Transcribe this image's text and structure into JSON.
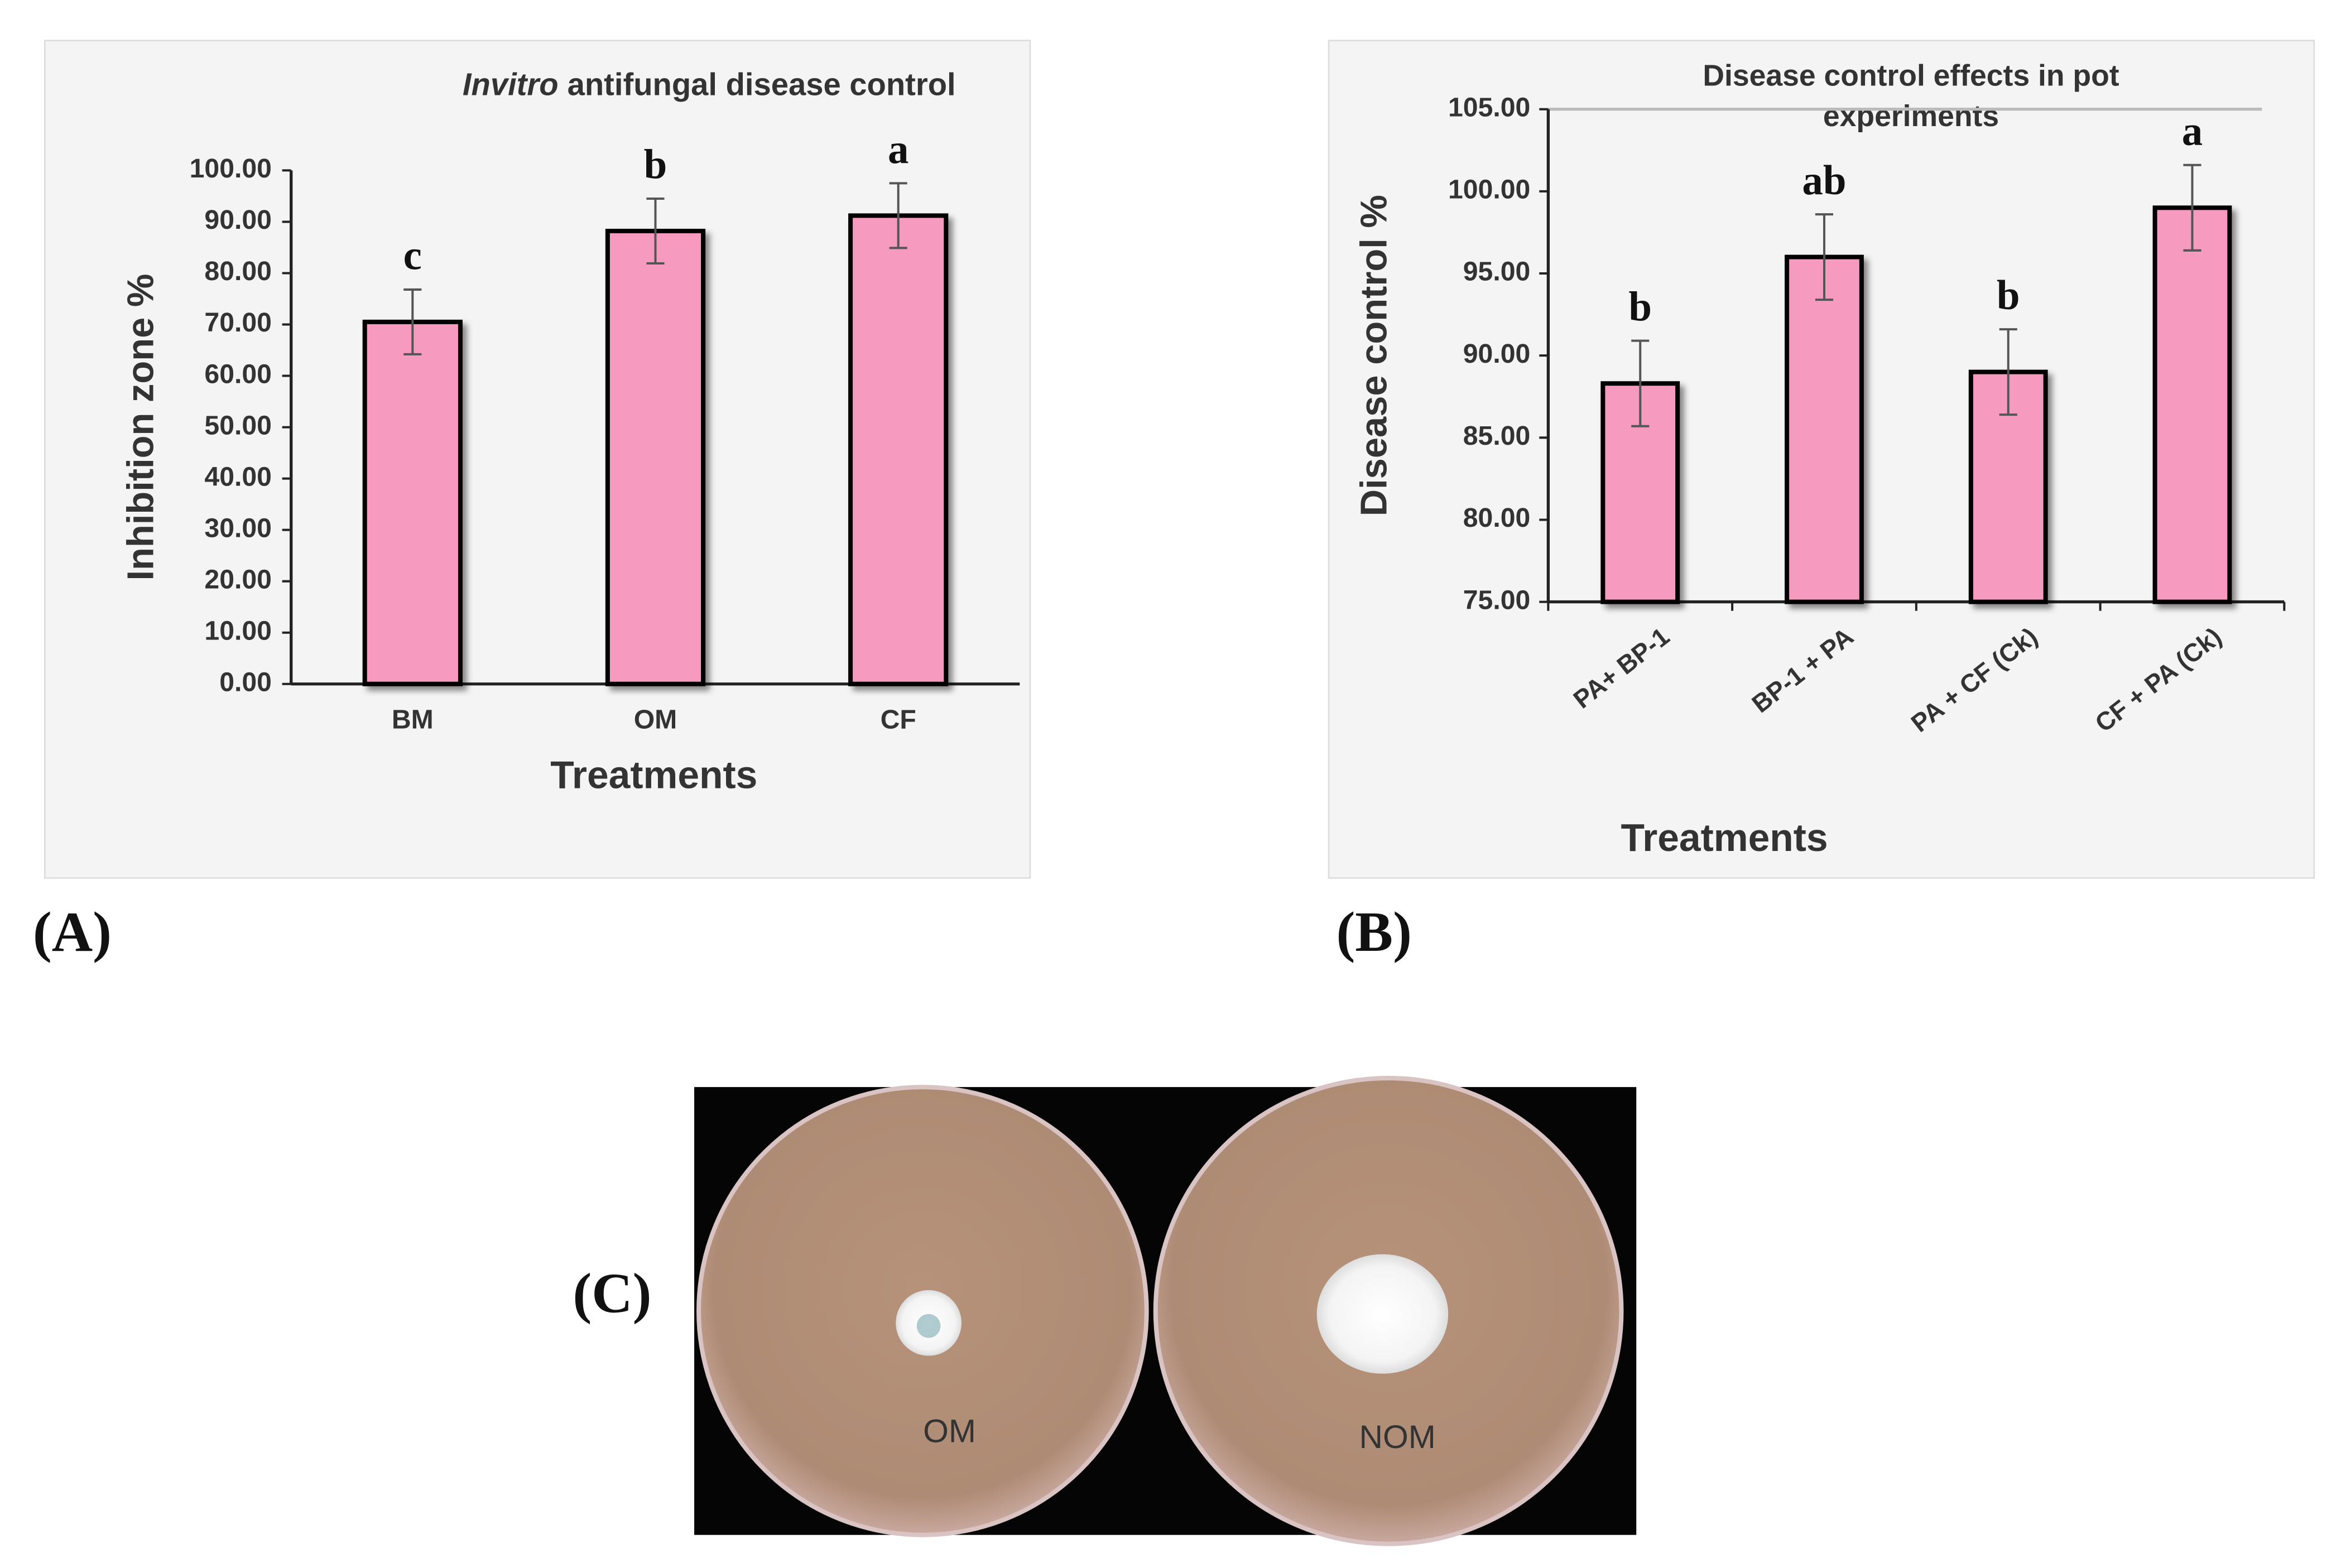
{
  "chart_data": [
    {
      "type": "bar",
      "panel_label": "(A)",
      "title": [
        "Invitro",
        "antifungal disease control"
      ],
      "x_label": "Treatments",
      "y_label": "Inhibition zone %",
      "categories": [
        "BM",
        "OM",
        "CF"
      ],
      "values": [
        70.5,
        88.2,
        91.2
      ],
      "errors": [
        6.3,
        6.3,
        6.3
      ],
      "letters": [
        "c",
        "b",
        "a"
      ],
      "color": "#f79ac0",
      "ylim": [
        0,
        100
      ],
      "yticks": [
        {
          "value": 0,
          "label": "0.00"
        },
        {
          "value": 10,
          "label": "10.00"
        },
        {
          "value": 20,
          "label": "20.00"
        },
        {
          "value": 30,
          "label": "30.00"
        },
        {
          "value": 40,
          "label": "40.00"
        },
        {
          "value": 50,
          "label": "50.00"
        },
        {
          "value": 60,
          "label": "60.00"
        },
        {
          "value": 70,
          "label": "70.00"
        },
        {
          "value": 80,
          "label": "80.00"
        },
        {
          "value": 90,
          "label": "90.00"
        },
        {
          "value": 100,
          "label": "100.00"
        }
      ]
    },
    {
      "type": "bar",
      "panel_label": "(B)",
      "title": [
        "Disease control effects in pot",
        "experiments"
      ],
      "x_label": "Treatments",
      "y_label": "Disease control %",
      "categories": [
        "PA+ BP-1",
        "BP-1 + PA",
        "PA + CF  (Ck)",
        "CF + PA (Ck)"
      ],
      "values": [
        88.3,
        96.0,
        89.0,
        99.0
      ],
      "errors": [
        2.6,
        2.6,
        2.6,
        2.6
      ],
      "letters": [
        "b",
        "ab",
        "b",
        "a"
      ],
      "color": "#f79ac0",
      "ylim": [
        75,
        105
      ],
      "yticks": [
        {
          "value": 75,
          "label": "75.00"
        },
        {
          "value": 80,
          "label": "80.00"
        },
        {
          "value": 85,
          "label": "85.00"
        },
        {
          "value": 90,
          "label": "90.00"
        },
        {
          "value": 95,
          "label": "95.00"
        },
        {
          "value": 100,
          "label": "100.00"
        },
        {
          "value": 105,
          "label": "105.00"
        }
      ]
    }
  ],
  "photo": {
    "panel_label": "(C)",
    "plates": [
      "OM",
      "NOM"
    ]
  }
}
